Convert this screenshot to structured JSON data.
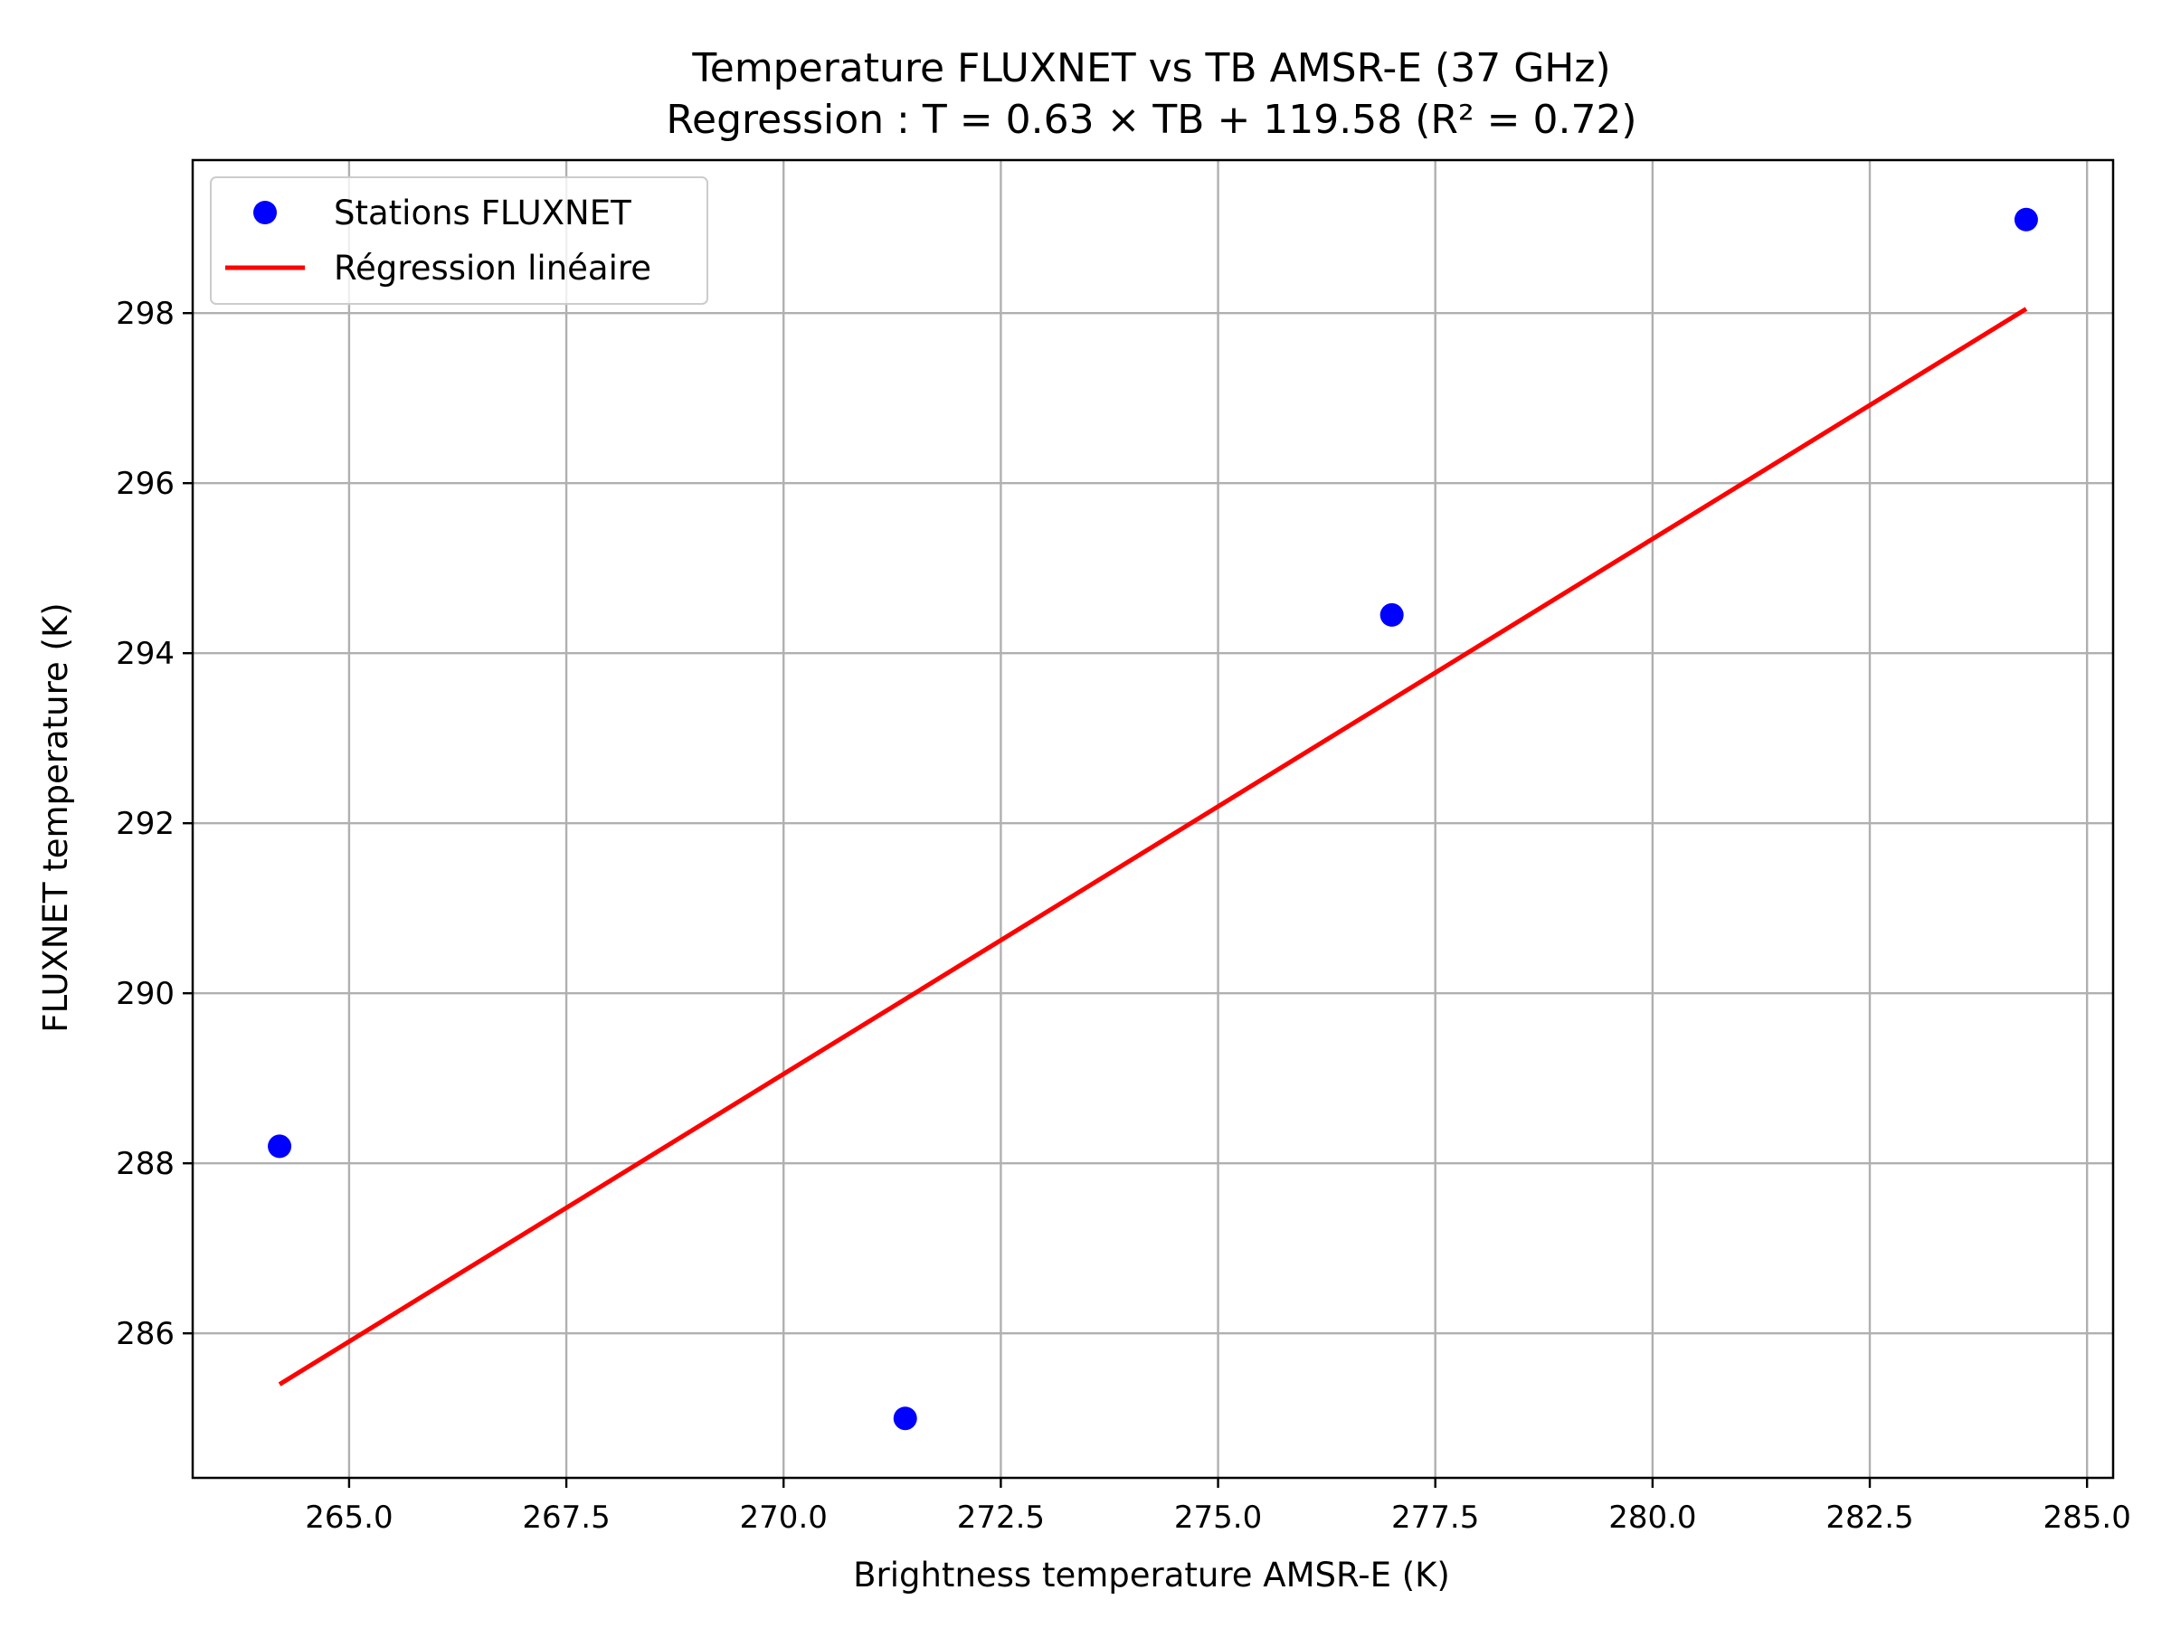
{
  "chart_data": {
    "type": "scatter",
    "title": "Temperature FLUXNET vs TB AMSR-E (37 GHz)",
    "subtitle": "Regression : T = 0.63 × TB + 119.58 (R² = 0.72)",
    "xlabel": "Brightness temperature AMSR-E (K)",
    "ylabel": "FLUXNET temperature (K)",
    "xlim": [
      263.2,
      285.3
    ],
    "ylim": [
      284.3,
      299.8
    ],
    "xticks": [
      265.0,
      267.5,
      270.0,
      272.5,
      275.0,
      277.5,
      280.0,
      282.5,
      285.0
    ],
    "xtick_labels": [
      "265.0",
      "267.5",
      "270.0",
      "272.5",
      "275.0",
      "277.5",
      "280.0",
      "282.5",
      "285.0"
    ],
    "yticks": [
      286,
      288,
      290,
      292,
      294,
      296,
      298
    ],
    "ytick_labels": [
      "286",
      "288",
      "290",
      "292",
      "294",
      "296",
      "298"
    ],
    "grid": true,
    "legend_position": "top-left",
    "series": [
      {
        "name": "Stations FLUXNET",
        "kind": "scatter",
        "color": "#0000ff",
        "x": [
          264.2,
          271.4,
          277.0,
          284.3
        ],
        "y": [
          288.2,
          285.0,
          294.45,
          299.1
        ]
      },
      {
        "name": "Régression linéaire",
        "kind": "line",
        "color": "#ff0000",
        "x": [
          264.2,
          284.3
        ],
        "y": [
          285.4,
          298.05
        ]
      }
    ]
  }
}
